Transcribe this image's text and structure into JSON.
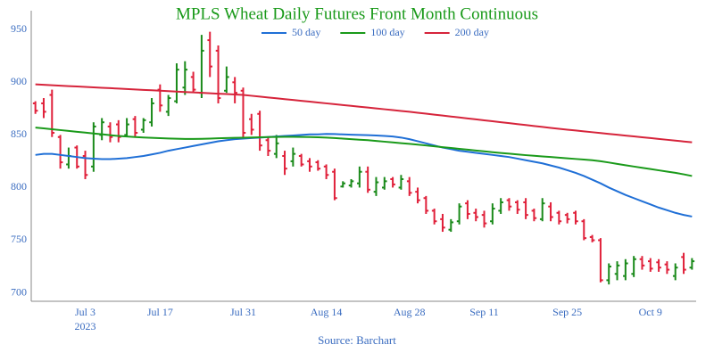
{
  "chart_data": {
    "type": "ohlc",
    "title": "MPLS Wheat Daily Futures Front Month Continuous",
    "source": "Source: Barchart",
    "title_color": "#1a9a1a",
    "axis_label_color": "#3a6cc0",
    "up_color": "#1a8a1a",
    "down_color": "#e0203a",
    "grid": false,
    "legend": "top",
    "x": [
      "2023-06-23",
      "2023-06-26",
      "2023-06-27",
      "2023-06-28",
      "2023-06-29",
      "2023-06-30",
      "2023-07-03",
      "2023-07-05",
      "2023-07-06",
      "2023-07-07",
      "2023-07-10",
      "2023-07-11",
      "2023-07-12",
      "2023-07-13",
      "2023-07-14",
      "2023-07-17",
      "2023-07-18",
      "2023-07-19",
      "2023-07-20",
      "2023-07-21",
      "2023-07-24",
      "2023-07-25",
      "2023-07-26",
      "2023-07-27",
      "2023-07-28",
      "2023-07-31",
      "2023-08-01",
      "2023-08-02",
      "2023-08-03",
      "2023-08-04",
      "2023-08-07",
      "2023-08-08",
      "2023-08-09",
      "2023-08-10",
      "2023-08-11",
      "2023-08-14",
      "2023-08-15",
      "2023-08-16",
      "2023-08-17",
      "2023-08-18",
      "2023-08-21",
      "2023-08-22",
      "2023-08-23",
      "2023-08-24",
      "2023-08-25",
      "2023-08-28",
      "2023-08-29",
      "2023-08-30",
      "2023-08-31",
      "2023-09-01",
      "2023-09-05",
      "2023-09-06",
      "2023-09-07",
      "2023-09-08",
      "2023-09-11",
      "2023-09-12",
      "2023-09-13",
      "2023-09-14",
      "2023-09-15",
      "2023-09-18",
      "2023-09-19",
      "2023-09-20",
      "2023-09-21",
      "2023-09-22",
      "2023-09-25",
      "2023-09-26",
      "2023-09-27",
      "2023-09-28",
      "2023-09-29",
      "2023-10-02",
      "2023-10-03",
      "2023-10-04",
      "2023-10-05",
      "2023-10-06",
      "2023-10-09",
      "2023-10-10",
      "2023-10-11",
      "2023-10-12",
      "2023-10-13",
      "2023-10-16"
    ],
    "open": [
      880,
      880,
      888,
      848,
      822,
      838,
      830,
      820,
      850,
      858,
      860,
      850,
      865,
      855,
      862,
      893,
      872,
      882,
      895,
      905,
      890,
      940,
      930,
      892,
      900,
      892,
      865,
      870,
      845,
      832,
      830,
      825,
      830,
      825,
      824,
      820,
      815,
      801,
      802,
      804,
      815,
      796,
      800,
      808,
      800,
      806,
      796,
      790,
      778,
      770,
      760,
      768,
      785,
      776,
      774,
      768,
      778,
      788,
      786,
      786,
      778,
      770,
      782,
      776,
      774,
      776,
      768,
      753,
      750,
      712,
      718,
      716,
      718,
      732,
      730,
      729,
      727,
      716,
      734,
      724
    ],
    "high": [
      882,
      885,
      893,
      850,
      838,
      840,
      835,
      862,
      866,
      862,
      864,
      866,
      868,
      866,
      885,
      898,
      888,
      918,
      920,
      910,
      945,
      948,
      935,
      915,
      905,
      895,
      870,
      873,
      848,
      850,
      835,
      838,
      832,
      828,
      826,
      822,
      818,
      806,
      808,
      820,
      820,
      810,
      810,
      810,
      812,
      810,
      800,
      792,
      780,
      775,
      770,
      785,
      788,
      780,
      778,
      785,
      790,
      790,
      788,
      790,
      780,
      790,
      786,
      778,
      776,
      778,
      770,
      755,
      752,
      728,
      730,
      732,
      735,
      735,
      733,
      732,
      730,
      728,
      738,
      733
    ],
    "low": [
      870,
      866,
      848,
      818,
      818,
      818,
      808,
      815,
      845,
      843,
      843,
      848,
      848,
      852,
      858,
      872,
      868,
      880,
      888,
      890,
      885,
      905,
      880,
      890,
      880,
      848,
      850,
      835,
      830,
      828,
      812,
      820,
      820,
      815,
      816,
      808,
      788,
      800,
      800,
      800,
      795,
      792,
      798,
      800,
      798,
      792,
      785,
      775,
      765,
      758,
      758,
      765,
      770,
      768,
      762,
      765,
      775,
      778,
      775,
      770,
      768,
      768,
      768,
      765,
      766,
      765,
      750,
      748,
      710,
      708,
      712,
      712,
      715,
      722,
      720,
      720,
      718,
      712,
      718,
      722
    ],
    "close": [
      873,
      872,
      852,
      824,
      830,
      820,
      812,
      858,
      862,
      848,
      848,
      860,
      852,
      864,
      880,
      878,
      885,
      912,
      912,
      893,
      930,
      915,
      885,
      905,
      890,
      852,
      855,
      840,
      835,
      842,
      818,
      832,
      822,
      820,
      818,
      812,
      790,
      804,
      806,
      815,
      798,
      805,
      806,
      803,
      808,
      795,
      788,
      778,
      768,
      762,
      767,
      782,
      775,
      772,
      766,
      780,
      786,
      782,
      779,
      774,
      771,
      785,
      772,
      768,
      770,
      768,
      752,
      750,
      712,
      725,
      726,
      728,
      732,
      726,
      723,
      724,
      722,
      724,
      722,
      730
    ],
    "series": [
      {
        "name": "50 day",
        "color": "#1f6fd6",
        "values": [
          831,
          832,
          832,
          831,
          830,
          829,
          828,
          827.5,
          827,
          827,
          827.5,
          828,
          829,
          830,
          831.5,
          833,
          835,
          836.5,
          838,
          839.5,
          841,
          842.5,
          844,
          845,
          846,
          846.5,
          847,
          847.5,
          848,
          848.5,
          849,
          849.5,
          850,
          850.5,
          850.5,
          851,
          850.8,
          850.5,
          850.2,
          850,
          849.8,
          849.5,
          849,
          848.5,
          847.5,
          846,
          844,
          842,
          840,
          838,
          836.5,
          835,
          834,
          833,
          832,
          831,
          830,
          829,
          827.5,
          826,
          824.5,
          823,
          821,
          819,
          816.5,
          814,
          811,
          807.5,
          804,
          800,
          796.5,
          793,
          790,
          787,
          784,
          781,
          778.5,
          776,
          774,
          772.5
        ]
      },
      {
        "name": "100 day",
        "color": "#1a9a1a",
        "values": [
          857,
          856.2,
          855.4,
          854.6,
          853.8,
          853,
          852.2,
          851.4,
          850.6,
          849.8,
          849,
          848.5,
          848,
          847.6,
          847.2,
          846.9,
          846.6,
          846.4,
          846.2,
          846.2,
          846.3,
          846.5,
          846.8,
          847,
          847.2,
          847.4,
          847.6,
          847.8,
          848,
          848.1,
          848.2,
          848.2,
          848.1,
          848,
          847.8,
          847.5,
          847,
          846.5,
          846,
          845.5,
          845,
          844.3,
          843.6,
          842.9,
          842.2,
          841.5,
          840.8,
          840,
          839.2,
          838.4,
          837.6,
          836.8,
          836,
          835.2,
          834.4,
          833.6,
          832.9,
          832.2,
          831.5,
          830.8,
          830.2,
          829.6,
          829,
          828.4,
          827.8,
          827.2,
          826.6,
          826,
          825,
          823.8,
          822.5,
          821.2,
          820,
          818.8,
          817.6,
          816.4,
          815.2,
          814,
          812.6,
          811
        ]
      },
      {
        "name": "200 day",
        "color": "#d6243b",
        "values": [
          898,
          897.6,
          897.2,
          896.8,
          896.4,
          896,
          895.6,
          895.2,
          894.8,
          894.4,
          894,
          893.6,
          893.2,
          892.8,
          892.4,
          892,
          891.6,
          891.2,
          890.8,
          890.4,
          890,
          889.6,
          889.2,
          888.8,
          888.4,
          888,
          887.2,
          886.4,
          885.6,
          884.8,
          884,
          883.2,
          882.4,
          881.6,
          880.8,
          880,
          879.2,
          878.4,
          877.6,
          876.8,
          876,
          875.2,
          874.4,
          873.6,
          872.8,
          872,
          871.1,
          870.2,
          869.3,
          868.4,
          867.5,
          866.6,
          865.7,
          864.8,
          863.9,
          863,
          862.1,
          861.2,
          860.3,
          859.4,
          858.5,
          857.6,
          856.7,
          855.8,
          855,
          854.2,
          853.4,
          852.6,
          851.8,
          851,
          850.2,
          849.4,
          848.6,
          847.8,
          847,
          846.2,
          845.4,
          844.6,
          843.8,
          843
        ]
      }
    ],
    "ylim": [
      692,
      968
    ],
    "yticks": [
      700,
      750,
      800,
      850,
      900,
      950
    ],
    "xticks": [
      {
        "value": "2023-07-03",
        "label": "Jul 3"
      },
      {
        "value": "2023-07-17",
        "label": "Jul 17"
      },
      {
        "value": "2023-07-31",
        "label": "Jul 31"
      },
      {
        "value": "2023-08-14",
        "label": "Aug 14"
      },
      {
        "value": "2023-08-28",
        "label": "Aug 28"
      },
      {
        "value": "2023-09-11",
        "label": "Sep 11"
      },
      {
        "value": "2023-09-25",
        "label": "Sep 25"
      },
      {
        "value": "2023-10-09",
        "label": "Oct 9"
      }
    ],
    "xtick_year": "2023"
  }
}
